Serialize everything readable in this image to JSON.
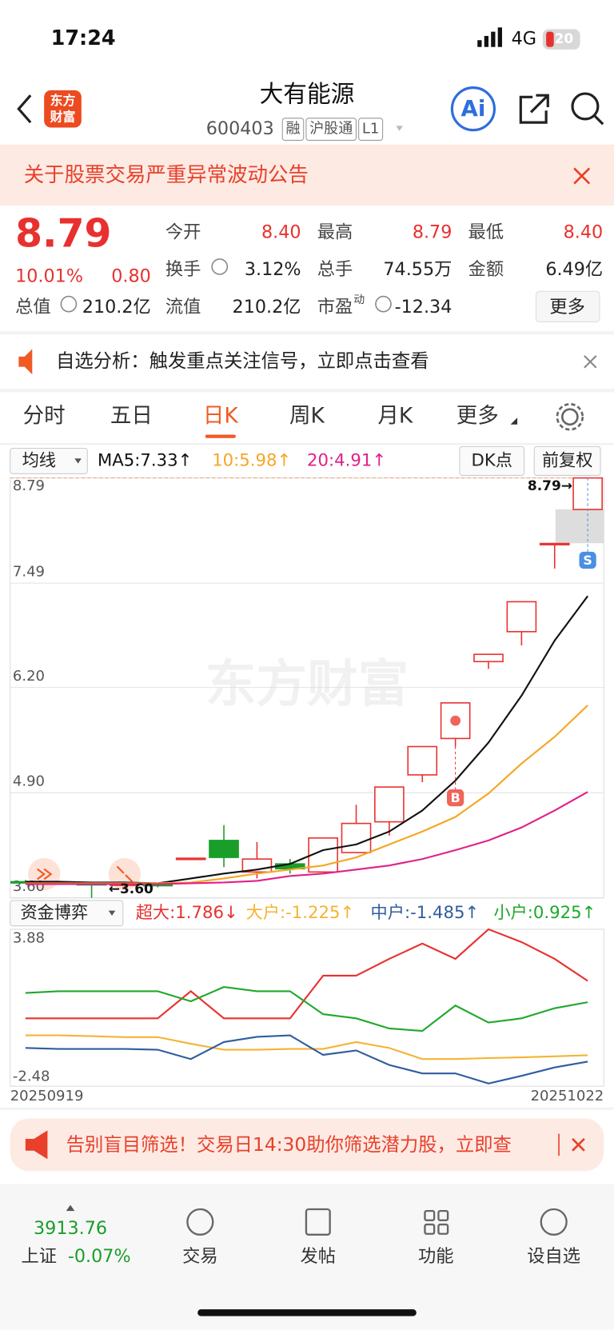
{
  "status": {
    "time": "17:24",
    "network": "4G",
    "battery": "20"
  },
  "header": {
    "logo": [
      "东方",
      "财富"
    ],
    "title": "大有能源",
    "code": "600403",
    "tags": [
      "融",
      "沪股通",
      "L1"
    ]
  },
  "notice": "关于股票交易严重异常波动公告",
  "quote": {
    "price": "8.79",
    "change_pct": "10.01%",
    "change": "0.80",
    "more": "更多",
    "fields": [
      {
        "label": "今开",
        "value": "8.40"
      },
      {
        "label": "最高",
        "value": "8.79"
      },
      {
        "label": "最低",
        "value": "8.40"
      },
      {
        "label": "换手",
        "value": "3.12%"
      },
      {
        "label": "总手",
        "value": "74.55万"
      },
      {
        "label": "金额",
        "value": "6.49亿"
      },
      {
        "label": "总值",
        "value": "210.2亿"
      },
      {
        "label": "流值",
        "value": "210.2亿"
      },
      {
        "label": "市盈",
        "sup": "动",
        "value": "-12.34"
      }
    ]
  },
  "alert": "自选分析：触发重点关注信号，立即点击查看",
  "tabs": [
    "分时",
    "五日",
    "日K",
    "周K",
    "月K",
    "更多"
  ],
  "kline": {
    "selector": "均线",
    "buttons": [
      "DK点",
      "前复权"
    ],
    "watermark": "东方财富",
    "ylim": [
      3.6,
      8.79
    ],
    "yticks": [
      8.79,
      7.49,
      {
        "value": 6.2,
        "label": "6.20"
      },
      {
        "value": 4.9,
        "label": "4.90"
      },
      {
        "value": 3.6,
        "label": "3.60"
      }
    ],
    "candles": {
      "open": [
        3.8,
        3.79,
        3.78,
        3.76,
        3.77,
        4.08,
        4.31,
        3.92,
        4.02,
        3.92,
        4.16,
        4.54,
        5.12,
        5.57,
        6.52,
        6.89,
        7.98,
        8.4
      ],
      "high": [
        3.82,
        3.81,
        3.8,
        3.78,
        3.79,
        4.09,
        4.5,
        4.29,
        4.08,
        4.34,
        4.75,
        4.97,
        5.47,
        6.01,
        6.61,
        7.26,
        7.98,
        8.79
      ],
      "low": [
        3.78,
        3.77,
        3.6,
        3.72,
        3.73,
        4.08,
        3.98,
        3.84,
        3.9,
        3.92,
        4.16,
        4.37,
        5.03,
        5.47,
        6.43,
        6.72,
        7.67,
        8.4
      ],
      "close": [
        3.79,
        3.78,
        3.76,
        3.77,
        3.75,
        4.09,
        4.1,
        4.08,
        3.96,
        4.34,
        4.52,
        4.97,
        5.47,
        6.01,
        6.61,
        7.26,
        7.98,
        8.79
      ]
    },
    "ma": [
      {
        "legend": "MA5:7.33↑",
        "color": "#111111",
        "values": [
          3.8,
          3.8,
          3.79,
          3.79,
          3.78,
          3.84,
          3.9,
          3.95,
          4.02,
          4.19,
          4.26,
          4.42,
          4.68,
          5.05,
          5.52,
          6.1,
          6.78,
          7.33
        ]
      },
      {
        "legend": "10:5.98↑",
        "color": "#f5a623",
        "values": [
          3.78,
          3.78,
          3.78,
          3.78,
          3.78,
          3.79,
          3.84,
          3.9,
          3.95,
          4.0,
          4.1,
          4.26,
          4.42,
          4.6,
          4.89,
          5.26,
          5.59,
          5.98
        ]
      },
      {
        "legend": "20:4.91↑",
        "color": "#e0218a",
        "values": [
          3.77,
          3.77,
          3.77,
          3.77,
          3.77,
          3.78,
          3.79,
          3.81,
          3.87,
          3.9,
          3.95,
          4.0,
          4.08,
          4.19,
          4.31,
          4.47,
          4.68,
          4.91
        ]
      }
    ],
    "high_label": "8.79→",
    "low_label": "←3.60",
    "markers": [
      "B",
      "S"
    ]
  },
  "fund": {
    "selector": "资金博弈",
    "ylim": [
      -2.48,
      3.88
    ],
    "yticks": [
      3.88,
      -2.48
    ],
    "xlabels": [
      "20250919",
      "20251022"
    ],
    "series": [
      {
        "legend": "超大:1.786↓",
        "color": "#e8312f",
        "values": [
          0.27,
          0.27,
          0.27,
          0.27,
          0.27,
          1.37,
          0.27,
          0.27,
          0.27,
          2.0,
          2.0,
          2.68,
          3.3,
          2.68,
          3.88,
          3.36,
          2.68,
          1.786
        ]
      },
      {
        "legend": "大户:-1.225↑",
        "color": "#f5b335",
        "values": [
          -0.42,
          -0.42,
          -0.45,
          -0.49,
          -0.49,
          -0.76,
          -1.0,
          -1.0,
          -0.97,
          -0.97,
          -0.69,
          -0.93,
          -1.38,
          -1.38,
          -1.34,
          -1.31,
          -1.27,
          -1.225
        ]
      },
      {
        "legend": "中户:-1.485↑",
        "color": "#2f5d9e",
        "values": [
          -0.93,
          -0.97,
          -0.97,
          -0.97,
          -1.0,
          -1.38,
          -0.69,
          -0.48,
          -0.42,
          -1.21,
          -1.03,
          -1.62,
          -1.96,
          -1.96,
          -2.37,
          -2.06,
          -1.72,
          -1.485
        ]
      },
      {
        "legend": "小户:0.925↑",
        "color": "#1fa82a",
        "values": [
          1.3,
          1.37,
          1.37,
          1.37,
          1.37,
          0.96,
          1.54,
          1.37,
          1.37,
          0.44,
          0.27,
          -0.14,
          -0.24,
          0.79,
          0.1,
          0.27,
          0.68,
          0.925
        ]
      }
    ]
  },
  "banner": "告别盲目筛选！交易日14:30助你筛选潜力股，立即查",
  "nav": {
    "index_value": "3913.76",
    "index_name": "上证",
    "index_change": "-0.07%",
    "items": [
      "交易",
      "发帖",
      "功能",
      "设自选"
    ]
  }
}
